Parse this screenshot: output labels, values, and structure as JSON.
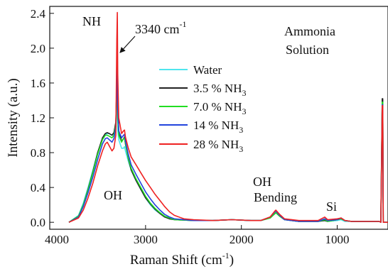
{
  "chart_data": {
    "type": "line",
    "title": "",
    "xlabel": "Raman Shift (cm-1)",
    "xlabel_main": "Raman Shift (cm",
    "xlabel_sup": "-1",
    "xlabel_close": ")",
    "ylabel": "Intensity (a.u.)",
    "xlim": [
      4000,
      470
    ],
    "ylim": [
      -0.08,
      2.48
    ],
    "x_reversed": true,
    "x_ticks": [
      4000,
      3000,
      2000,
      1000
    ],
    "y_ticks": [
      0.0,
      0.4,
      0.8,
      1.2,
      1.6,
      2.0,
      2.4
    ],
    "y_tick_labels": [
      "0.0",
      "0.4",
      "0.8",
      "1.2",
      "1.6",
      "2.0",
      "2.4"
    ],
    "x_tick_labels": [
      "4000",
      "3000",
      "2000",
      "1000"
    ],
    "grid": false,
    "legend_placement": "upper-middle",
    "series": [
      {
        "name": "Water",
        "color": "#4fe6ee",
        "points": [
          [
            3800,
            0.0
          ],
          [
            3700,
            0.08
          ],
          [
            3650,
            0.22
          ],
          [
            3600,
            0.4
          ],
          [
            3550,
            0.6
          ],
          [
            3500,
            0.8
          ],
          [
            3450,
            0.95
          ],
          [
            3420,
            1.0
          ],
          [
            3400,
            1.02
          ],
          [
            3380,
            1.02
          ],
          [
            3350,
            1.0
          ],
          [
            3330,
            1.02
          ],
          [
            3310,
            1.1
          ],
          [
            3300,
            1.25
          ],
          [
            3295,
            1.3
          ],
          [
            3290,
            1.05
          ],
          [
            3280,
            0.95
          ],
          [
            3250,
            0.85
          ],
          [
            3230,
            0.85
          ],
          [
            3220,
            0.87
          ],
          [
            3210,
            0.82
          ],
          [
            3180,
            0.7
          ],
          [
            3150,
            0.6
          ],
          [
            3100,
            0.48
          ],
          [
            3050,
            0.38
          ],
          [
            3000,
            0.28
          ],
          [
            2950,
            0.2
          ],
          [
            2900,
            0.14
          ],
          [
            2850,
            0.1
          ],
          [
            2800,
            0.06
          ],
          [
            2750,
            0.04
          ],
          [
            2700,
            0.03
          ],
          [
            2500,
            0.02
          ],
          [
            2300,
            0.02
          ],
          [
            2100,
            0.03
          ],
          [
            1900,
            0.02
          ],
          [
            1800,
            0.02
          ],
          [
            1700,
            0.05
          ],
          [
            1650,
            0.1
          ],
          [
            1640,
            0.11
          ],
          [
            1600,
            0.07
          ],
          [
            1550,
            0.03
          ],
          [
            1400,
            0.01
          ],
          [
            1200,
            0.01
          ],
          [
            1130,
            0.02
          ],
          [
            1100,
            0.01
          ],
          [
            1000,
            0.02
          ],
          [
            960,
            0.03
          ],
          [
            920,
            0.01
          ],
          [
            850,
            0.01
          ],
          [
            700,
            0.01
          ],
          [
            560,
            0.01
          ],
          [
            545,
            0.0
          ],
          [
            530,
            1.4
          ],
          [
            525,
            1.4
          ],
          [
            520,
            0.0
          ],
          [
            470,
            0.0
          ]
        ]
      },
      {
        "name": "3.5 % NH3",
        "name_main": "3.5 % NH",
        "name_sub": "3",
        "color": "#222222",
        "points": [
          [
            3800,
            0.0
          ],
          [
            3700,
            0.07
          ],
          [
            3650,
            0.2
          ],
          [
            3600,
            0.38
          ],
          [
            3550,
            0.58
          ],
          [
            3500,
            0.8
          ],
          [
            3450,
            0.97
          ],
          [
            3420,
            1.02
          ],
          [
            3400,
            1.03
          ],
          [
            3380,
            1.02
          ],
          [
            3350,
            1.0
          ],
          [
            3330,
            1.03
          ],
          [
            3310,
            1.15
          ],
          [
            3300,
            1.6
          ],
          [
            3295,
            1.8
          ],
          [
            3290,
            1.3
          ],
          [
            3280,
            1.05
          ],
          [
            3250,
            0.93
          ],
          [
            3230,
            0.96
          ],
          [
            3220,
            0.98
          ],
          [
            3210,
            0.9
          ],
          [
            3180,
            0.73
          ],
          [
            3150,
            0.6
          ],
          [
            3100,
            0.48
          ],
          [
            3050,
            0.38
          ],
          [
            3000,
            0.28
          ],
          [
            2950,
            0.21
          ],
          [
            2900,
            0.15
          ],
          [
            2850,
            0.1
          ],
          [
            2800,
            0.06
          ],
          [
            2750,
            0.04
          ],
          [
            2700,
            0.03
          ],
          [
            2500,
            0.02
          ],
          [
            2300,
            0.02
          ],
          [
            2100,
            0.03
          ],
          [
            1900,
            0.02
          ],
          [
            1800,
            0.02
          ],
          [
            1700,
            0.05
          ],
          [
            1650,
            0.1
          ],
          [
            1640,
            0.11
          ],
          [
            1600,
            0.07
          ],
          [
            1550,
            0.03
          ],
          [
            1400,
            0.01
          ],
          [
            1200,
            0.01
          ],
          [
            1130,
            0.02
          ],
          [
            1100,
            0.01
          ],
          [
            1000,
            0.03
          ],
          [
            960,
            0.04
          ],
          [
            920,
            0.02
          ],
          [
            850,
            0.01
          ],
          [
            700,
            0.01
          ],
          [
            560,
            0.01
          ],
          [
            545,
            0.0
          ],
          [
            530,
            1.42
          ],
          [
            525,
            1.42
          ],
          [
            520,
            0.0
          ],
          [
            470,
            0.0
          ]
        ]
      },
      {
        "name": "7.0 % NH3",
        "name_main": "7.0 % NH",
        "name_sub": "3",
        "color": "#22dd22",
        "points": [
          [
            3800,
            0.0
          ],
          [
            3700,
            0.07
          ],
          [
            3650,
            0.2
          ],
          [
            3600,
            0.37
          ],
          [
            3550,
            0.57
          ],
          [
            3500,
            0.78
          ],
          [
            3450,
            0.95
          ],
          [
            3420,
            1.0
          ],
          [
            3400,
            1.0
          ],
          [
            3380,
            0.99
          ],
          [
            3350,
            0.97
          ],
          [
            3330,
            1.0
          ],
          [
            3310,
            1.12
          ],
          [
            3300,
            1.45
          ],
          [
            3295,
            1.55
          ],
          [
            3290,
            1.2
          ],
          [
            3280,
            1.0
          ],
          [
            3250,
            0.92
          ],
          [
            3230,
            0.96
          ],
          [
            3220,
            0.97
          ],
          [
            3210,
            0.9
          ],
          [
            3180,
            0.74
          ],
          [
            3150,
            0.62
          ],
          [
            3100,
            0.5
          ],
          [
            3050,
            0.4
          ],
          [
            3000,
            0.3
          ],
          [
            2950,
            0.22
          ],
          [
            2900,
            0.16
          ],
          [
            2850,
            0.11
          ],
          [
            2800,
            0.07
          ],
          [
            2750,
            0.05
          ],
          [
            2700,
            0.03
          ],
          [
            2500,
            0.02
          ],
          [
            2300,
            0.02
          ],
          [
            2100,
            0.03
          ],
          [
            1900,
            0.02
          ],
          [
            1800,
            0.02
          ],
          [
            1700,
            0.05
          ],
          [
            1650,
            0.1
          ],
          [
            1640,
            0.11
          ],
          [
            1600,
            0.07
          ],
          [
            1550,
            0.03
          ],
          [
            1400,
            0.01
          ],
          [
            1200,
            0.01
          ],
          [
            1130,
            0.03
          ],
          [
            1100,
            0.01
          ],
          [
            1000,
            0.03
          ],
          [
            960,
            0.04
          ],
          [
            920,
            0.02
          ],
          [
            850,
            0.01
          ],
          [
            700,
            0.01
          ],
          [
            560,
            0.01
          ],
          [
            545,
            0.0
          ],
          [
            530,
            1.38
          ],
          [
            525,
            1.38
          ],
          [
            520,
            0.0
          ],
          [
            470,
            0.0
          ]
        ]
      },
      {
        "name": "14 % NH3",
        "name_main": "14 % NH",
        "name_sub": "3",
        "color": "#2244dd",
        "points": [
          [
            3800,
            0.0
          ],
          [
            3700,
            0.06
          ],
          [
            3650,
            0.18
          ],
          [
            3600,
            0.34
          ],
          [
            3550,
            0.52
          ],
          [
            3500,
            0.72
          ],
          [
            3450,
            0.9
          ],
          [
            3420,
            0.96
          ],
          [
            3400,
            0.97
          ],
          [
            3380,
            0.95
          ],
          [
            3350,
            0.92
          ],
          [
            3330,
            0.96
          ],
          [
            3310,
            1.1
          ],
          [
            3300,
            1.6
          ],
          [
            3295,
            1.75
          ],
          [
            3290,
            1.3
          ],
          [
            3280,
            1.05
          ],
          [
            3250,
            0.97
          ],
          [
            3230,
            1.0
          ],
          [
            3220,
            1.01
          ],
          [
            3210,
            0.93
          ],
          [
            3180,
            0.78
          ],
          [
            3150,
            0.66
          ],
          [
            3100,
            0.55
          ],
          [
            3050,
            0.45
          ],
          [
            3000,
            0.35
          ],
          [
            2950,
            0.27
          ],
          [
            2900,
            0.2
          ],
          [
            2850,
            0.14
          ],
          [
            2800,
            0.09
          ],
          [
            2750,
            0.06
          ],
          [
            2700,
            0.04
          ],
          [
            2500,
            0.02
          ],
          [
            2300,
            0.02
          ],
          [
            2100,
            0.03
          ],
          [
            1900,
            0.02
          ],
          [
            1800,
            0.02
          ],
          [
            1700,
            0.06
          ],
          [
            1650,
            0.12
          ],
          [
            1640,
            0.13
          ],
          [
            1600,
            0.08
          ],
          [
            1550,
            0.03
          ],
          [
            1400,
            0.01
          ],
          [
            1200,
            0.01
          ],
          [
            1130,
            0.04
          ],
          [
            1100,
            0.02
          ],
          [
            1000,
            0.03
          ],
          [
            960,
            0.05
          ],
          [
            920,
            0.02
          ],
          [
            850,
            0.01
          ],
          [
            700,
            0.01
          ],
          [
            560,
            0.01
          ],
          [
            545,
            0.0
          ],
          [
            530,
            1.35
          ],
          [
            525,
            1.35
          ],
          [
            520,
            0.0
          ],
          [
            470,
            0.0
          ]
        ]
      },
      {
        "name": "28 % NH3",
        "name_main": "28 % NH",
        "name_sub": "3",
        "color": "#ee2222",
        "points": [
          [
            3800,
            0.0
          ],
          [
            3700,
            0.05
          ],
          [
            3650,
            0.14
          ],
          [
            3600,
            0.28
          ],
          [
            3550,
            0.45
          ],
          [
            3500,
            0.65
          ],
          [
            3450,
            0.82
          ],
          [
            3420,
            0.9
          ],
          [
            3400,
            0.92
          ],
          [
            3380,
            0.88
          ],
          [
            3350,
            0.82
          ],
          [
            3330,
            0.85
          ],
          [
            3310,
            1.0
          ],
          [
            3300,
            2.1
          ],
          [
            3295,
            2.41
          ],
          [
            3290,
            1.7
          ],
          [
            3280,
            1.2
          ],
          [
            3250,
            1.02
          ],
          [
            3230,
            1.05
          ],
          [
            3220,
            1.06
          ],
          [
            3210,
            0.98
          ],
          [
            3180,
            0.85
          ],
          [
            3150,
            0.75
          ],
          [
            3100,
            0.66
          ],
          [
            3050,
            0.57
          ],
          [
            3000,
            0.48
          ],
          [
            2950,
            0.4
          ],
          [
            2900,
            0.32
          ],
          [
            2850,
            0.25
          ],
          [
            2800,
            0.18
          ],
          [
            2750,
            0.12
          ],
          [
            2700,
            0.08
          ],
          [
            2600,
            0.04
          ],
          [
            2500,
            0.03
          ],
          [
            2300,
            0.02
          ],
          [
            2100,
            0.03
          ],
          [
            1900,
            0.02
          ],
          [
            1800,
            0.02
          ],
          [
            1700,
            0.06
          ],
          [
            1650,
            0.13
          ],
          [
            1640,
            0.14
          ],
          [
            1600,
            0.09
          ],
          [
            1550,
            0.04
          ],
          [
            1400,
            0.02
          ],
          [
            1200,
            0.02
          ],
          [
            1130,
            0.06
          ],
          [
            1100,
            0.03
          ],
          [
            1000,
            0.04
          ],
          [
            960,
            0.05
          ],
          [
            920,
            0.02
          ],
          [
            850,
            0.01
          ],
          [
            700,
            0.01
          ],
          [
            560,
            0.01
          ],
          [
            545,
            0.0
          ],
          [
            530,
            1.34
          ],
          [
            525,
            1.34
          ],
          [
            520,
            0.0
          ],
          [
            470,
            0.0
          ]
        ]
      }
    ],
    "annotations": {
      "nh": "NH",
      "peak_main": "3340 cm",
      "peak_sup": "-1",
      "ammonia_line1": "Ammonia",
      "ammonia_line2": "Solution",
      "oh": "OH",
      "oh_bending_line1": "OH",
      "oh_bending_line2": "Bending",
      "si": "Si"
    }
  }
}
